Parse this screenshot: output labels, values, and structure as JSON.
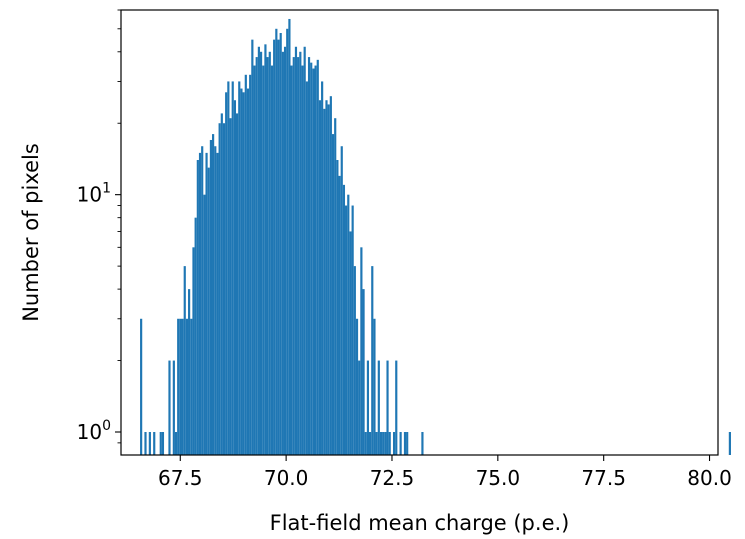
{
  "chart_data": {
    "type": "bar",
    "subtype": "histogram",
    "title": "",
    "xlabel": "Flat-field mean charge (p.e.)",
    "ylabel": "Number of pixels",
    "xlim": [
      66.1,
      80.2
    ],
    "ylim": [
      0.8,
      60
    ],
    "yscale": "log",
    "grid": false,
    "legend": "none",
    "bar_color": "#1f77b4",
    "bin_width": 0.0515,
    "xticks": [
      67.5,
      70.0,
      72.5,
      75.0,
      77.5,
      80.0
    ],
    "xtick_labels": [
      "67.5",
      "70.0",
      "72.5",
      "75.0",
      "77.5",
      "80.0"
    ],
    "yticks": [
      1,
      10
    ],
    "ytick_labels": [
      {
        "base": "10",
        "exp": "0"
      },
      {
        "base": "10",
        "exp": "1"
      }
    ],
    "series": [
      {
        "bin_edges_start": 66.55,
        "counts": [
          3,
          0,
          1,
          0,
          1,
          0,
          1,
          0,
          0,
          1,
          1,
          0,
          0,
          2,
          0,
          2,
          1,
          3,
          3,
          3,
          5,
          3,
          4,
          3,
          6,
          8,
          14,
          15,
          16,
          10,
          15,
          13,
          17,
          18,
          16,
          15,
          20,
          22,
          20,
          27,
          30,
          21,
          30,
          25,
          22,
          30,
          28,
          27,
          32,
          28,
          32,
          45,
          35,
          38,
          42,
          40,
          35,
          43,
          38,
          40,
          35,
          45,
          50,
          45,
          48,
          40,
          42,
          50,
          55,
          35,
          38,
          42,
          38,
          40,
          35,
          42,
          30,
          38,
          36,
          34,
          35,
          37,
          25,
          30,
          23,
          25,
          24,
          26,
          18,
          21,
          14,
          12,
          16,
          11,
          9,
          10,
          7,
          9,
          5,
          3,
          2,
          6,
          4,
          1,
          2,
          1,
          5,
          3,
          1,
          2,
          1,
          1,
          1,
          2,
          1,
          0,
          1,
          2,
          0,
          1,
          0,
          1,
          1,
          0,
          0,
          0,
          0,
          0,
          0,
          1,
          0,
          0,
          0,
          0,
          0,
          0,
          0,
          0,
          0,
          0,
          0,
          0,
          0,
          0,
          0,
          0,
          0,
          0,
          0,
          0,
          0,
          0,
          0,
          0,
          0,
          0,
          0,
          0,
          0,
          0,
          0,
          0,
          0,
          0,
          0,
          0,
          0,
          0,
          0,
          0,
          0,
          0,
          0,
          0,
          0,
          0,
          0,
          0,
          0,
          0,
          0,
          0,
          0,
          0,
          0,
          0,
          0,
          0,
          0,
          0,
          0,
          0,
          0,
          0,
          0,
          0,
          0,
          0,
          0,
          0,
          0,
          0,
          0,
          0,
          0,
          0,
          0,
          0,
          0,
          0,
          0,
          0,
          0,
          0,
          0,
          0,
          0,
          0,
          0,
          0,
          0,
          0,
          0,
          0,
          0,
          0,
          0,
          0,
          0,
          0,
          0,
          0,
          0,
          0,
          0,
          0,
          0,
          0,
          0,
          0,
          0,
          0,
          0,
          0,
          0,
          0,
          0,
          0,
          0,
          0,
          0,
          0,
          0,
          0,
          0,
          0,
          0,
          0,
          0,
          0,
          0,
          0,
          0,
          0,
          0,
          0,
          0,
          0,
          0,
          0,
          1
        ]
      }
    ]
  }
}
